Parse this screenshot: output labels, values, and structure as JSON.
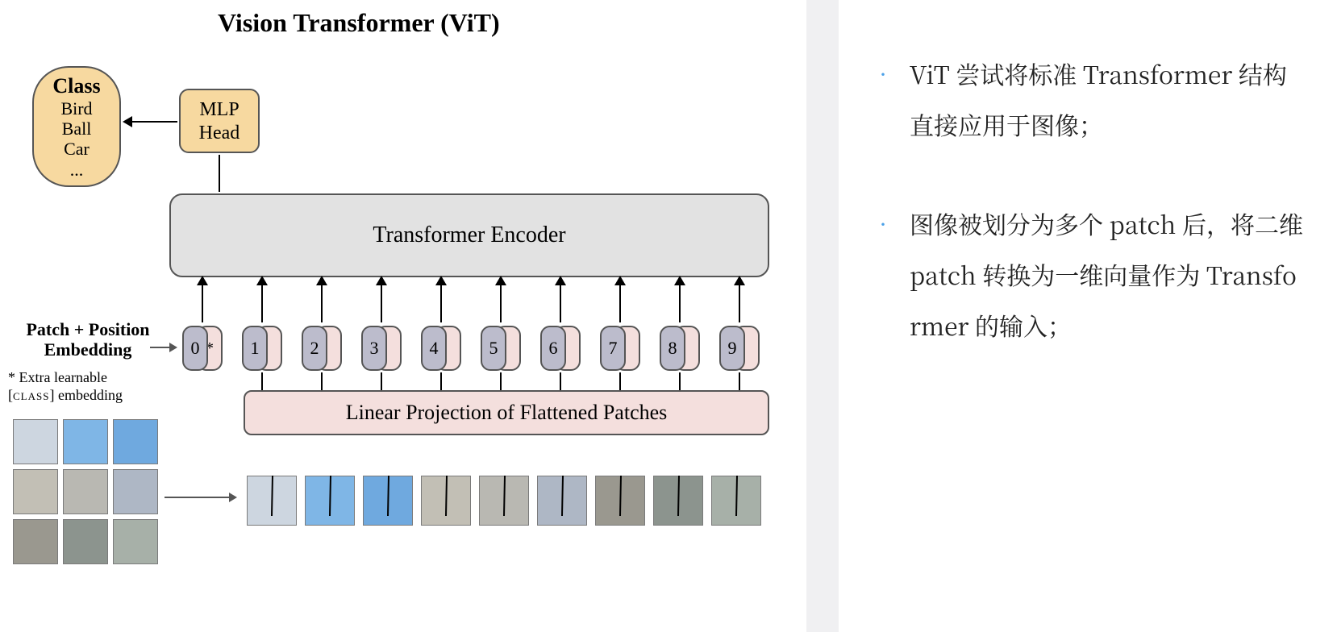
{
  "title": "Vision Transformer (ViT)",
  "class_box": {
    "header": "Class",
    "items": [
      "Bird",
      "Ball",
      "Car",
      "..."
    ],
    "bg_color": "#f7d9a0",
    "border_color": "#555555"
  },
  "mlp_head": {
    "line1": "MLP",
    "line2": "Head",
    "bg_color": "#f7d9a0"
  },
  "encoder": {
    "label": "Transformer Encoder",
    "bg_color": "#e2e2e2"
  },
  "projection": {
    "label": "Linear Projection of Flattened Patches",
    "bg_color": "#f4dfdd"
  },
  "pe_label": {
    "line1": "Patch + Position",
    "line2": "Embedding"
  },
  "pe_note": {
    "line1": "* Extra learnable",
    "line2_pre": "[",
    "line2_sc": "class",
    "line2_post": "] embedding"
  },
  "tokens": {
    "count": 10,
    "labels": [
      "0",
      "1",
      "2",
      "3",
      "4",
      "5",
      "6",
      "7",
      "8",
      "9"
    ],
    "class_symbol": "*",
    "pos_bg": "#bcbccc",
    "emb_bg": "#f4dfdd"
  },
  "grid_colors": [
    "#cdd6e0",
    "#7fb6e6",
    "#6fa9df",
    "#c2bfb5",
    "#b9b8b2",
    "#aeb7c5",
    "#9a988f",
    "#8c948e",
    "#a7b0a8"
  ],
  "strip_colors": [
    "#cdd6e0",
    "#7fb6e6",
    "#6fa9df",
    "#c2bfb5",
    "#b9b8b2",
    "#aeb7c5",
    "#9a988f",
    "#8c948e",
    "#a7b0a8"
  ],
  "bullets": [
    "ViT 尝试将标准 Transformer 结构直接应用于图像；",
    "图像被划分为多个 patch 后，将二维 patch 转换为一维向量作为 Transformer 的输入；"
  ],
  "bullet_dot_color": "#4aa0e8",
  "background_color": "#ffffff",
  "divider_color": "#f0f0f2"
}
